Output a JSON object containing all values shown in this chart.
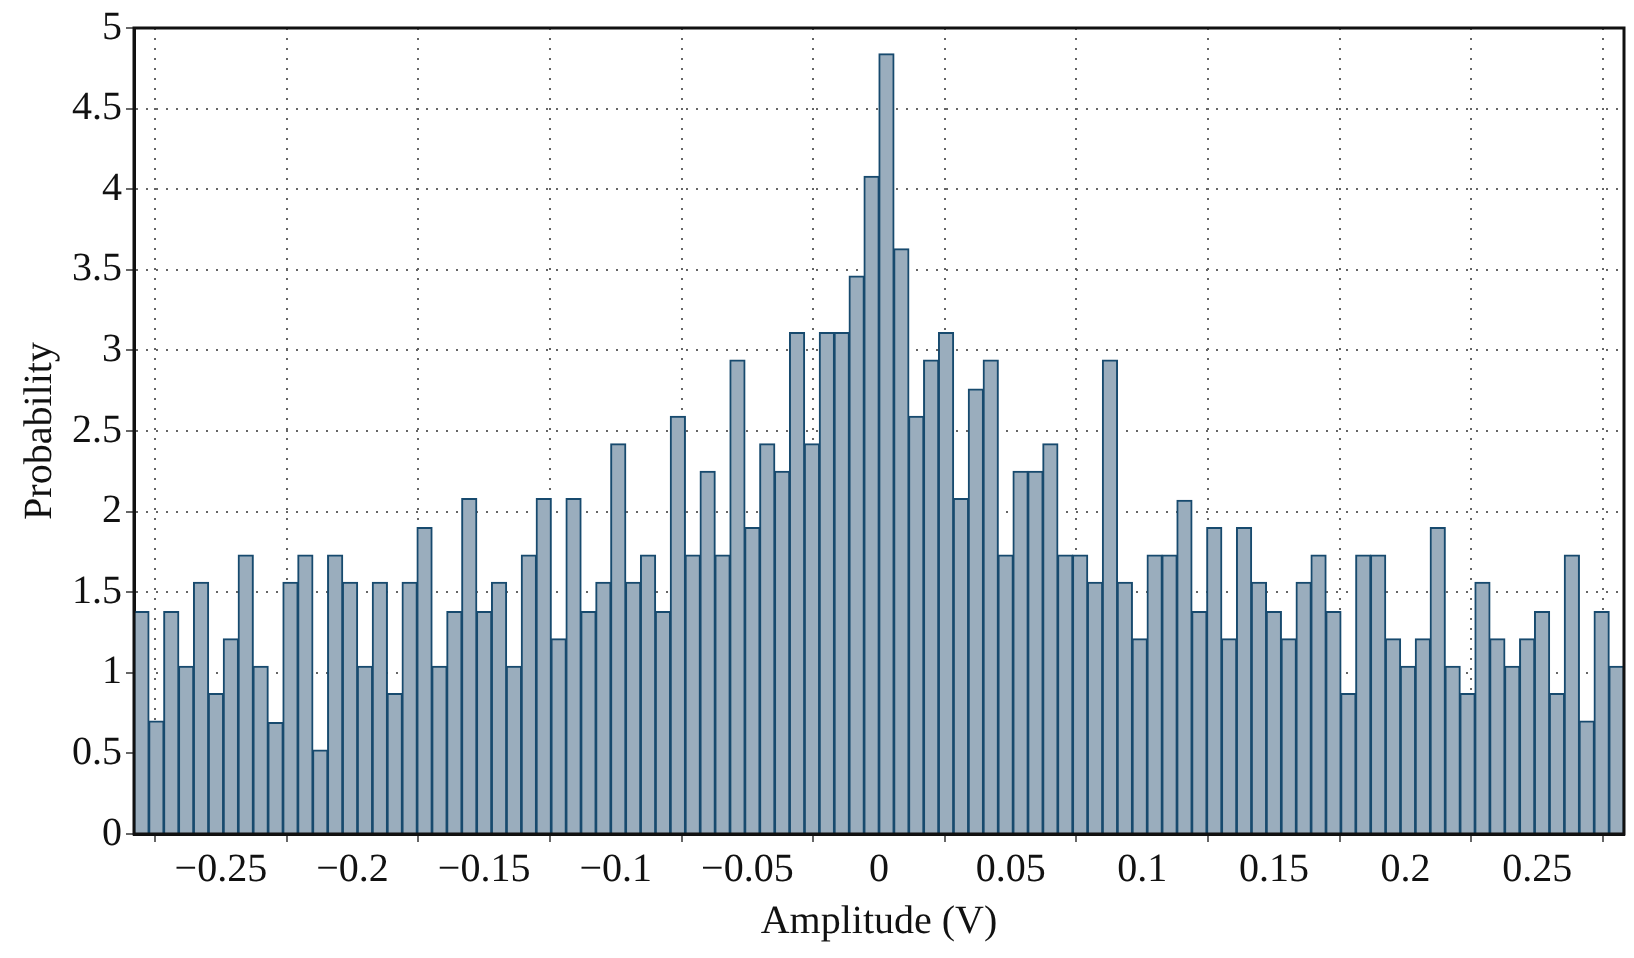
{
  "chart_data": {
    "type": "histogram",
    "xlabel": "Amplitude (V)",
    "ylabel": "Probability",
    "color": "#9aadbd",
    "bins": [
      -0.283,
      -0.27734,
      -0.27168,
      -0.26602,
      -0.26036,
      -0.2547,
      -0.24904,
      -0.24338,
      -0.23772,
      -0.23206,
      -0.2264,
      -0.22074,
      -0.21508,
      -0.20942,
      -0.20376,
      -0.1981,
      -0.19244,
      -0.18678,
      -0.18112,
      -0.17546,
      -0.1698,
      -0.16414,
      -0.15848,
      -0.15282,
      -0.14716,
      -0.1415,
      -0.13584,
      -0.13018,
      -0.12452,
      -0.11886,
      -0.1132,
      -0.10754,
      -0.10188,
      -0.09622,
      -0.09056,
      -0.0849,
      -0.07924,
      -0.07358,
      -0.06792,
      -0.06226,
      -0.0566,
      -0.05094,
      -0.04528,
      -0.03962,
      -0.03396,
      -0.0283,
      -0.02264,
      -0.01698,
      -0.01132,
      -0.00566,
      0,
      0.00566,
      0.01132,
      0.01698,
      0.02264,
      0.0283,
      0.03396,
      0.03962,
      0.04528,
      0.05094,
      0.0566,
      0.06226,
      0.06792,
      0.07358,
      0.07924,
      0.0849,
      0.09056,
      0.09622,
      0.10188,
      0.10754,
      0.1132,
      0.11886,
      0.12452,
      0.13018,
      0.13584,
      0.1415,
      0.14716,
      0.15282,
      0.15848,
      0.16414,
      0.1698,
      0.17546,
      0.18112,
      0.18678,
      0.19244,
      0.1981,
      0.20376,
      0.20942,
      0.21508,
      0.22074,
      0.2264,
      0.23206,
      0.23772,
      0.24338,
      0.24904,
      0.2547,
      0.26036,
      0.26602,
      0.27168,
      0.27734,
      0.283
    ],
    "values": [
      1.38,
      0.7,
      1.38,
      1.04,
      1.56,
      0.87,
      1.21,
      1.73,
      1.04,
      0.69,
      1.56,
      1.73,
      0.52,
      1.73,
      1.56,
      1.04,
      1.56,
      0.87,
      1.56,
      1.9,
      1.04,
      1.38,
      2.08,
      1.38,
      1.56,
      1.04,
      1.73,
      2.08,
      1.21,
      2.08,
      1.38,
      1.56,
      2.42,
      1.56,
      1.73,
      1.38,
      2.59,
      1.73,
      2.25,
      1.73,
      2.94,
      1.9,
      2.42,
      2.25,
      3.11,
      2.42,
      3.11,
      3.11,
      3.46,
      4.08,
      4.84,
      3.63,
      2.59,
      2.94,
      3.11,
      2.08,
      2.76,
      2.94,
      1.73,
      2.25,
      2.25,
      2.42,
      1.73,
      1.73,
      1.56,
      2.94,
      1.56,
      1.21,
      1.73,
      1.73,
      2.07,
      1.38,
      1.9,
      1.21,
      1.9,
      1.56,
      1.38,
      1.21,
      1.56,
      1.73,
      1.38,
      0.87,
      1.73,
      1.73,
      1.21,
      1.04,
      1.21,
      1.9,
      1.04,
      0.87,
      1.56,
      1.21,
      1.04,
      1.21,
      1.38,
      0.87,
      1.73,
      0.7,
      1.38,
      1.04
    ],
    "xlim": [
      -0.283,
      0.283
    ],
    "xticks": [
      -0.25,
      -0.2,
      -0.15,
      -0.1,
      -0.05,
      0,
      0.05,
      0.1,
      0.15,
      0.2,
      0.25
    ],
    "ylim": [
      0,
      5
    ],
    "yticks": [
      0,
      0.5,
      1,
      1.5,
      2,
      2.5,
      3,
      3.5,
      4,
      4.5,
      5
    ],
    "grid": true
  }
}
